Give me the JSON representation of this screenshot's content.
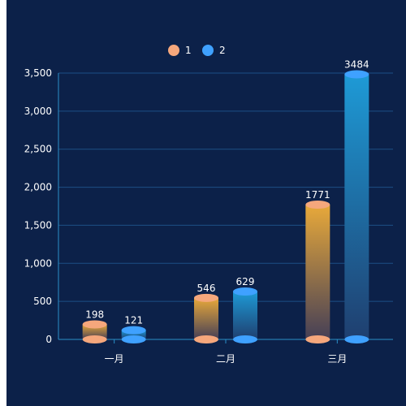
{
  "chart_data": {
    "type": "bar",
    "categories": [
      "一月",
      "二月",
      "三月"
    ],
    "series": [
      {
        "name": "1",
        "values": [
          198,
          546,
          1771
        ]
      },
      {
        "name": "2",
        "values": [
          121,
          629,
          3484
        ]
      }
    ],
    "ylim": [
      0,
      3500
    ],
    "yticks": [
      0,
      500,
      1000,
      1500,
      2000,
      2500,
      3000,
      3500
    ],
    "ytick_labels": [
      "0",
      "500",
      "1,000",
      "1,500",
      "2,000",
      "2,500",
      "3,000",
      "3,500"
    ],
    "grid": true,
    "legend": "top-center",
    "colors": {
      "series1_dot": "#f5a77c",
      "series1_top": "#e8a93a",
      "series1_bottom": "#453f56",
      "series2_dot": "#3fa1ff",
      "series2_top": "#1e9ad6",
      "series2_bottom": "#1f3f6f",
      "background": "#0c2149",
      "grid": "#1d4f86",
      "axis": "#2a8fc7",
      "text": "#ffffff"
    }
  }
}
